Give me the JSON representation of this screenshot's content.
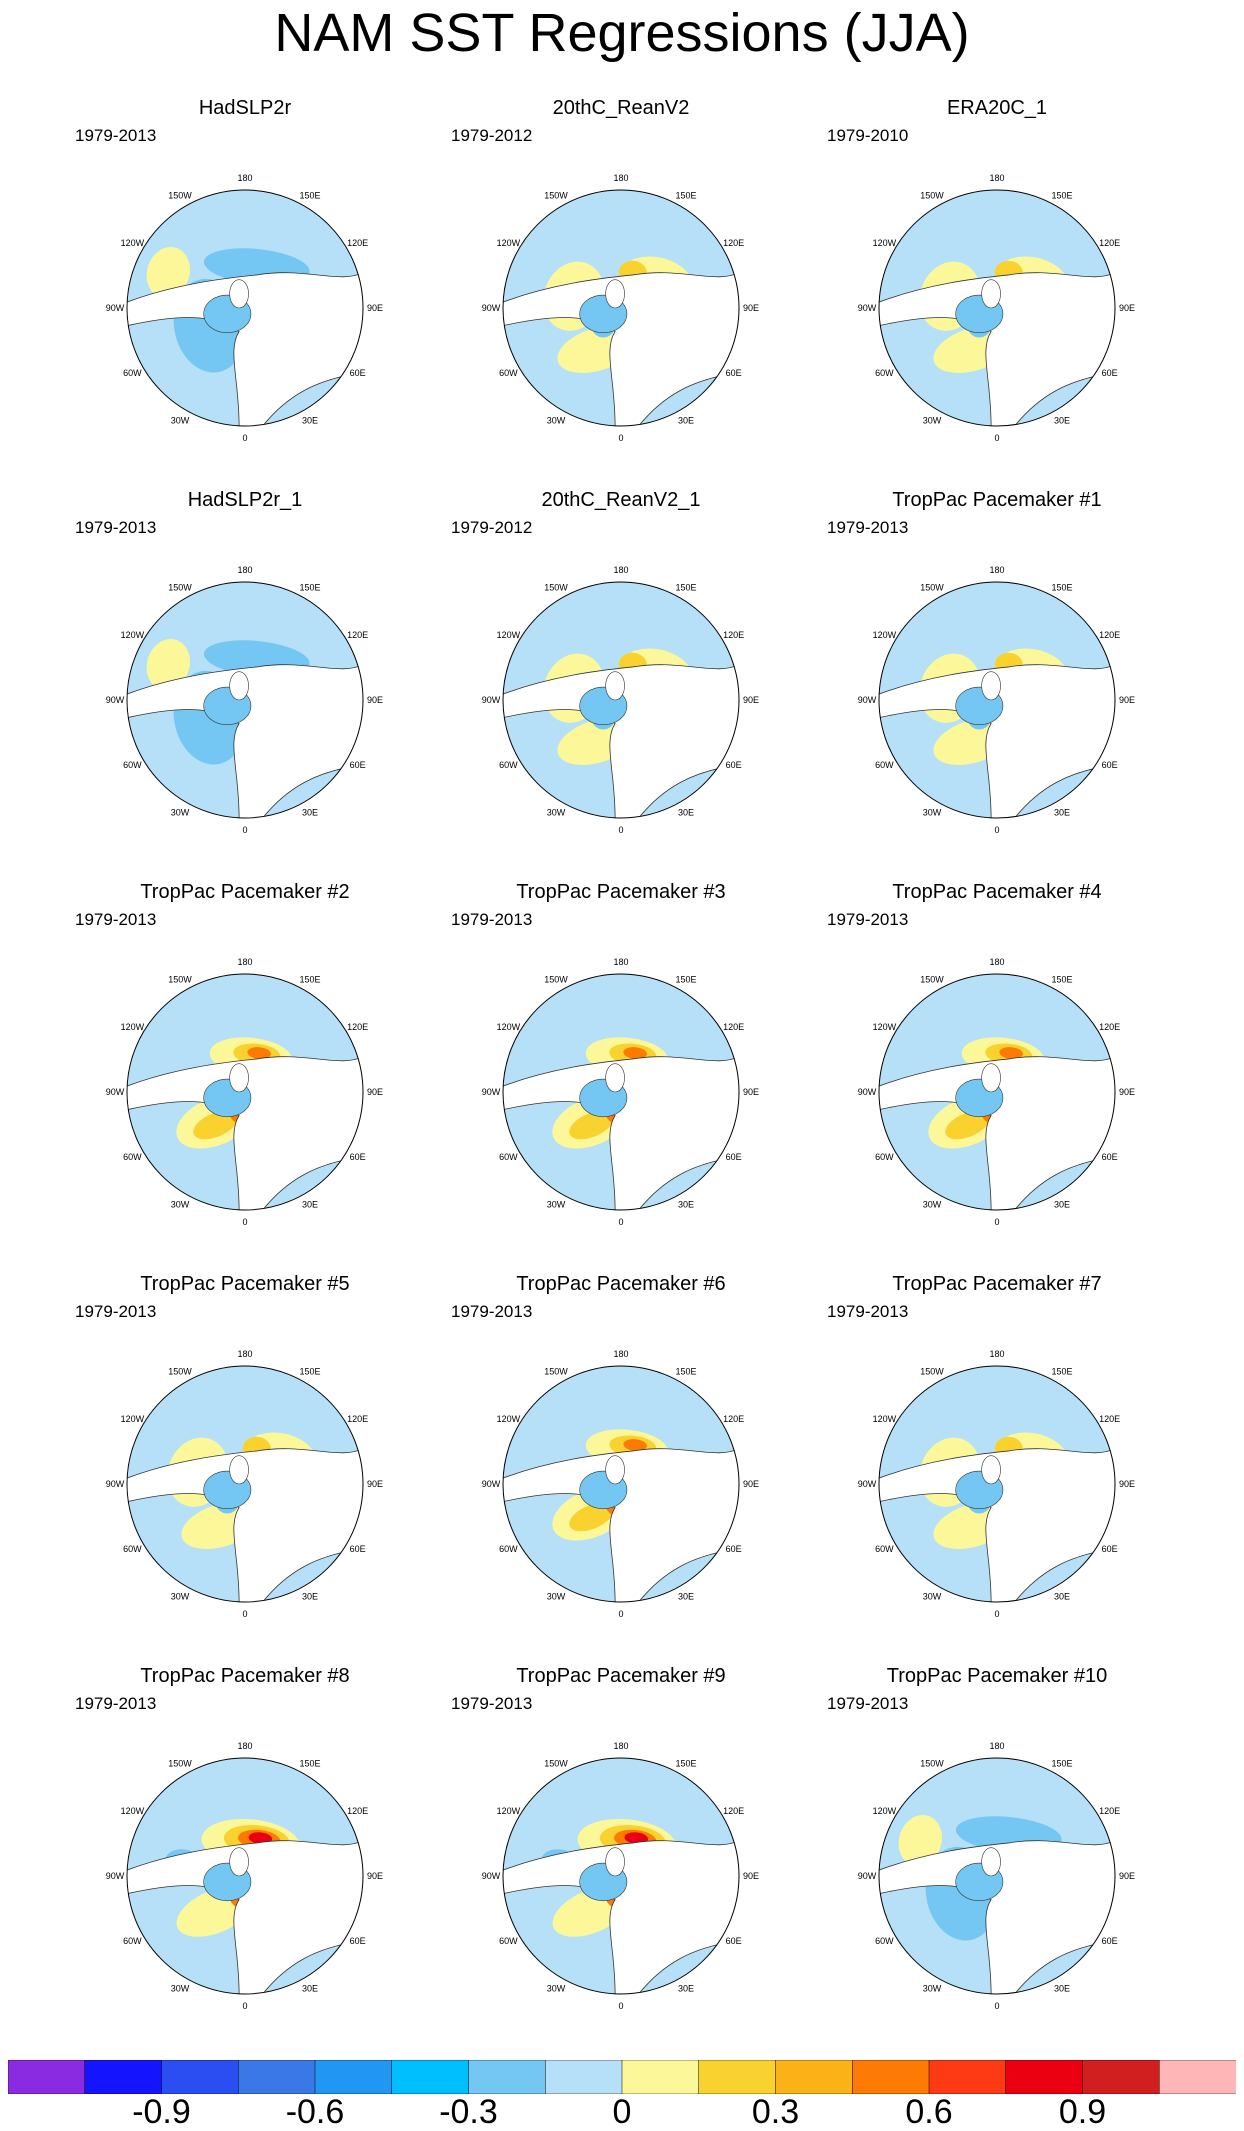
{
  "title": "NAM SST Regressions (JJA)",
  "panels": [
    {
      "title": "HadSLP2r",
      "years": "1979-2013",
      "scheme": "cool"
    },
    {
      "title": "20thC_ReanV2",
      "years": "1979-2012",
      "scheme": "mixed"
    },
    {
      "title": "ERA20C_1",
      "years": "1979-2010",
      "scheme": "mixed"
    },
    {
      "title": "HadSLP2r_1",
      "years": "1979-2013",
      "scheme": "cool"
    },
    {
      "title": "20thC_ReanV2_1",
      "years": "1979-2012",
      "scheme": "mixed"
    },
    {
      "title": "TropPac Pacemaker #1",
      "years": "1979-2013",
      "scheme": "mixed"
    },
    {
      "title": "TropPac Pacemaker #2",
      "years": "1979-2013",
      "scheme": "warm"
    },
    {
      "title": "TropPac Pacemaker #3",
      "years": "1979-2013",
      "scheme": "warm"
    },
    {
      "title": "TropPac Pacemaker #4",
      "years": "1979-2013",
      "scheme": "warm"
    },
    {
      "title": "TropPac Pacemaker #5",
      "years": "1979-2013",
      "scheme": "mixed"
    },
    {
      "title": "TropPac Pacemaker #6",
      "years": "1979-2013",
      "scheme": "warm"
    },
    {
      "title": "TropPac Pacemaker #7",
      "years": "1979-2013",
      "scheme": "mixed"
    },
    {
      "title": "TropPac Pacemaker #8",
      "years": "1979-2013",
      "scheme": "hot"
    },
    {
      "title": "TropPac Pacemaker #9",
      "years": "1979-2013",
      "scheme": "hot"
    },
    {
      "title": "TropPac Pacemaker #10",
      "years": "1979-2013",
      "scheme": "cool"
    }
  ],
  "lon_labels": {
    "top": "180",
    "nw": "150W",
    "ne": "150E",
    "w_upper": "120W",
    "e_upper": "120E",
    "w": "90W",
    "e": "90E",
    "w_lower": "60W",
    "e_lower": "60E",
    "sw": "30W",
    "se": "30E",
    "bottom": "0"
  },
  "colorbar": {
    "colors": [
      "#8a2be2",
      "#1414ff",
      "#2a4ef2",
      "#3a78e8",
      "#2196f3",
      "#00bfff",
      "#73c7f2",
      "#b5e0f7",
      "#fcf89a",
      "#fad22f",
      "#fbb217",
      "#fd7b05",
      "#fe3a14",
      "#eb0012",
      "#d11e1e",
      "#ffb6b6"
    ],
    "labels": [
      {
        "text": "-0.9",
        "boundary": 2
      },
      {
        "text": "-0.6",
        "boundary": 4
      },
      {
        "text": "-0.3",
        "boundary": 6
      },
      {
        "text": "0",
        "boundary": 8
      },
      {
        "text": "0.3",
        "boundary": 10
      },
      {
        "text": "0.6",
        "boundary": 12
      },
      {
        "text": "0.9",
        "boundary": 14
      }
    ]
  }
}
